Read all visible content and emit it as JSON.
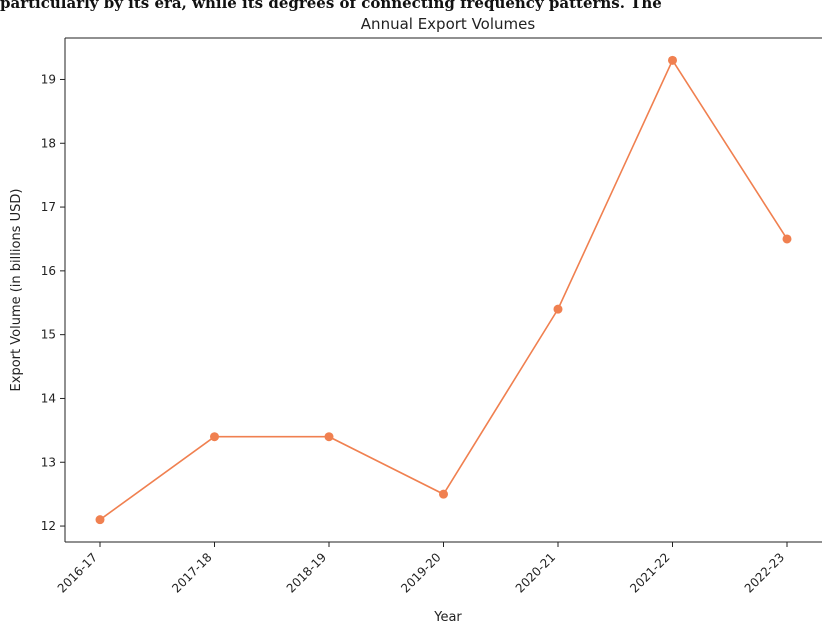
{
  "caption": "particularly by its era, while its degrees of connecting frequency patterns. The",
  "chart_data": {
    "type": "line",
    "title": "Annual Export Volumes",
    "xlabel": "Year",
    "ylabel": "Export Volume (in billions USD)",
    "categories": [
      "2016-17",
      "2017-18",
      "2018-19",
      "2019-20",
      "2020-21",
      "2021-22",
      "2022-23"
    ],
    "series": [
      {
        "values": [
          12.1,
          13.4,
          13.4,
          12.5,
          15.4,
          19.3,
          16.5
        ],
        "color": "#f08050"
      }
    ],
    "ylim": [
      11.75,
      19.65
    ],
    "yticks": [
      12,
      13,
      14,
      15,
      16,
      17,
      18,
      19
    ],
    "grid": false,
    "legend": "none"
  }
}
